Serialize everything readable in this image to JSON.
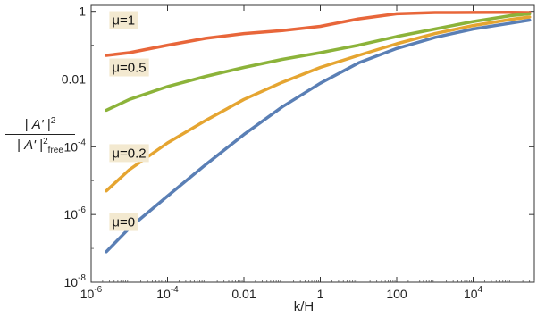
{
  "chart_data": {
    "type": "line",
    "title": "",
    "xlabel": "k/H",
    "ylabel": {
      "numerator_left": "| ",
      "numerator_symbol": "A'",
      "numerator_right": " |",
      "numerator_exp": "2",
      "denominator_left": "| ",
      "denominator_symbol": "A'",
      "denominator_right": " |",
      "denominator_exp": "2",
      "denominator_sub": "free"
    },
    "x_scale": "log",
    "y_scale": "log",
    "xlim": [
      1e-06,
      400000
    ],
    "ylim": [
      1e-08,
      1.5
    ],
    "x_ticks": [
      {
        "value": 1e-06,
        "base": "10",
        "exp": "-6"
      },
      {
        "value": 0.0001,
        "base": "10",
        "exp": "-4"
      },
      {
        "value": 0.01,
        "text": "0.01"
      },
      {
        "value": 1,
        "text": "1"
      },
      {
        "value": 100,
        "text": "100"
      },
      {
        "value": 10000,
        "base": "10",
        "exp": "4"
      }
    ],
    "y_ticks": [
      {
        "value": 1e-08,
        "base": "10",
        "exp": "-8"
      },
      {
        "value": 1e-06,
        "base": "10",
        "exp": "-6"
      },
      {
        "value": 0.0001,
        "base": "10",
        "exp": "-4"
      },
      {
        "value": 0.01,
        "text": "0.01"
      },
      {
        "value": 1,
        "text": "1"
      }
    ],
    "grid": false,
    "series": [
      {
        "name": "μ=1",
        "color": "#e8663a",
        "x": [
          2.5e-06,
          1e-05,
          0.0001,
          0.001,
          0.01,
          0.1,
          1,
          10,
          100,
          1000,
          10000,
          100000,
          300000
        ],
        "y": [
          0.05,
          0.06,
          0.1,
          0.16,
          0.22,
          0.27,
          0.36,
          0.6,
          0.85,
          0.92,
          0.93,
          0.94,
          0.92
        ]
      },
      {
        "name": "μ=0.5",
        "color": "#8cb33a",
        "x": [
          2.5e-06,
          1e-05,
          0.0001,
          0.001,
          0.01,
          0.1,
          1,
          10,
          100,
          1000,
          10000,
          100000,
          300000
        ],
        "y": [
          0.0012,
          0.0025,
          0.006,
          0.012,
          0.022,
          0.038,
          0.06,
          0.1,
          0.18,
          0.3,
          0.5,
          0.75,
          0.85
        ]
      },
      {
        "name": "μ=0.2",
        "color": "#e5a531",
        "x": [
          2.5e-06,
          1e-05,
          0.0001,
          0.001,
          0.01,
          0.1,
          1,
          10,
          100,
          1000,
          10000,
          100000,
          300000
        ],
        "y": [
          5e-06,
          2.1e-05,
          0.00013,
          0.0006,
          0.0025,
          0.008,
          0.022,
          0.05,
          0.11,
          0.22,
          0.38,
          0.58,
          0.68
        ]
      },
      {
        "name": "μ=0",
        "color": "#5a7fb5",
        "x": [
          2.5e-06,
          1e-05,
          0.0001,
          0.001,
          0.01,
          0.1,
          1,
          10,
          100,
          1000,
          10000,
          100000,
          300000
        ],
        "y": [
          8e-08,
          4e-07,
          3.5e-06,
          3e-05,
          0.00023,
          0.0015,
          0.0075,
          0.03,
          0.08,
          0.17,
          0.3,
          0.45,
          0.55
        ]
      }
    ],
    "labels": [
      {
        "text": "μ=1",
        "x": 3e-06,
        "y": 0.55
      },
      {
        "text": "μ=0.5",
        "x": 3e-06,
        "y": 0.022
      },
      {
        "text": "μ=0.2",
        "x": 3e-06,
        "y": 6.5e-05
      },
      {
        "text": "μ=0",
        "x": 3e-06,
        "y": 6e-07
      }
    ]
  }
}
